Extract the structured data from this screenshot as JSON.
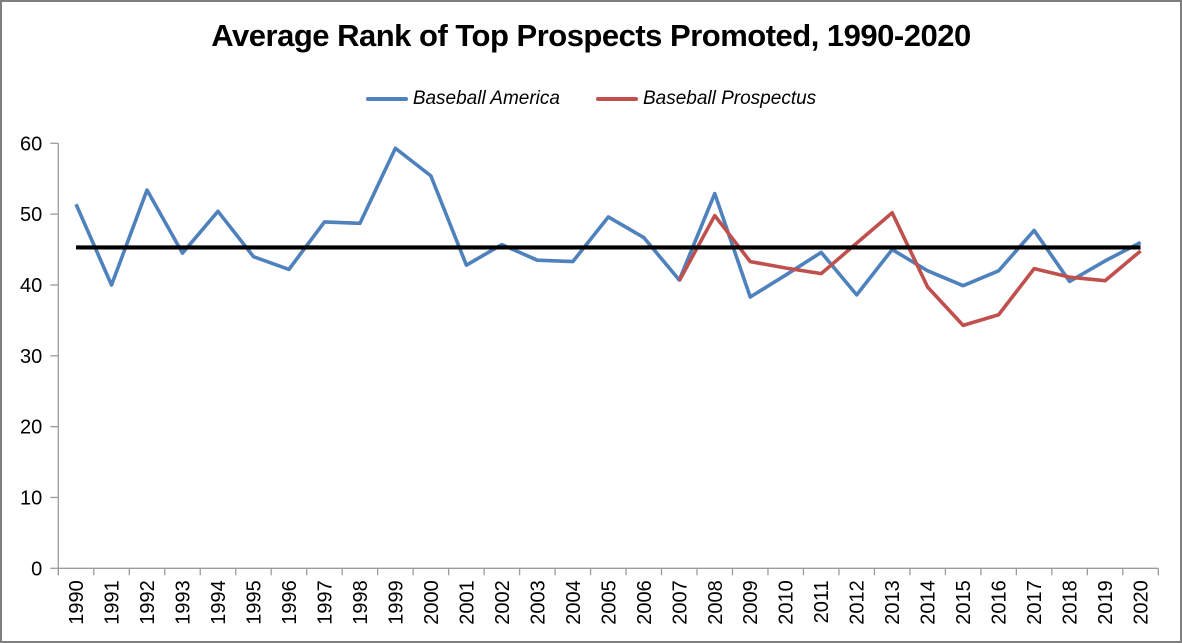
{
  "window": {
    "background": "#FFFFFF",
    "border_color": "#7F7F7F"
  },
  "chart_data": {
    "type": "line",
    "title": "Average Rank of Top Prospects Promoted, 1990-2020",
    "x": [
      1990,
      1991,
      1992,
      1993,
      1994,
      1995,
      1996,
      1997,
      1998,
      1999,
      2000,
      2001,
      2002,
      2003,
      2004,
      2005,
      2006,
      2007,
      2008,
      2009,
      2010,
      2011,
      2012,
      2013,
      2014,
      2015,
      2016,
      2017,
      2018,
      2019,
      2020
    ],
    "series": [
      {
        "name": "Baseball America",
        "color": "#4F81BD",
        "values": [
          51.4,
          40.0,
          53.4,
          44.5,
          50.4,
          44.0,
          42.2,
          48.9,
          48.7,
          59.3,
          55.4,
          42.8,
          45.7,
          43.5,
          43.3,
          49.6,
          46.7,
          40.7,
          52.9,
          38.3,
          41.4,
          44.6,
          38.6,
          45.0,
          42.0,
          39.9,
          42.0,
          47.7,
          40.5,
          43.4,
          46.0
        ]
      },
      {
        "name": "Baseball Prospectus",
        "color": "#C0504D",
        "values": [
          null,
          null,
          null,
          null,
          null,
          null,
          null,
          null,
          null,
          null,
          null,
          null,
          null,
          null,
          null,
          null,
          null,
          40.6,
          49.8,
          43.3,
          42.4,
          41.6,
          45.9,
          50.2,
          39.7,
          34.3,
          35.8,
          42.3,
          41.1,
          40.6,
          44.8
        ]
      }
    ],
    "reference_line": {
      "value": 45.3,
      "color": "#000000"
    },
    "ylim": [
      0,
      60
    ],
    "yticks": [
      0,
      10,
      20,
      30,
      40,
      50,
      60
    ],
    "grid": "off",
    "legend_position": "top",
    "axis_color": "#9B9B9B",
    "tick_color": "#9B9B9B",
    "text_color": "#000000"
  }
}
